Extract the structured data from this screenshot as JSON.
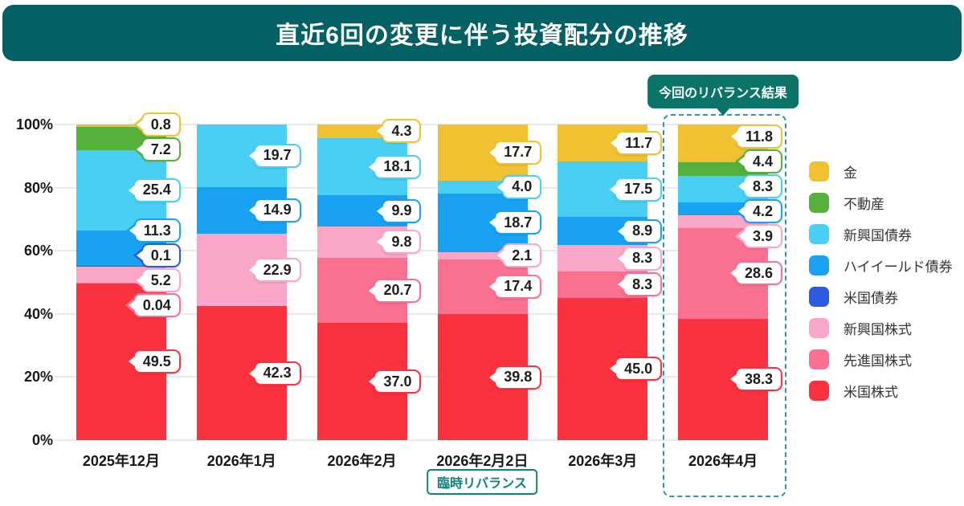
{
  "header": {
    "title": "直近6回の変更に伴う投資配分の推移"
  },
  "badges": {
    "current_result": "今回のリバランス結果",
    "temporary": "臨時リバランス"
  },
  "colors": {
    "header_bg": "#036064",
    "highlight_badge_bg": "#0A7468",
    "temporary_accent": "#11807B",
    "dashed_box": "#2F97A8",
    "grid": "#E9E9E9",
    "axis_text": "#16181B"
  },
  "chart_data": {
    "type": "bar",
    "subtype": "100%-stacked-column",
    "title": "直近6回の変更に伴う投資配分の推移",
    "categories": [
      "2025年12月",
      "2026年1月",
      "2026年2月",
      "2026年2月2日",
      "2026年3月",
      "2026年4月"
    ],
    "series": [
      {
        "name": "金",
        "color": "#F0C232",
        "values": [
          0.8,
          null,
          4.3,
          17.7,
          11.7,
          11.8
        ],
        "labels": [
          "0.8",
          null,
          "4.3",
          "17.7",
          "11.7",
          "11.8"
        ]
      },
      {
        "name": "不動産",
        "color": "#56B03C",
        "values": [
          7.2,
          null,
          null,
          null,
          null,
          4.4
        ],
        "labels": [
          "7.2",
          null,
          null,
          null,
          null,
          "4.4"
        ]
      },
      {
        "name": "新興国債券",
        "color": "#49CFF4",
        "values": [
          25.4,
          19.7,
          18.1,
          4.0,
          17.5,
          8.3
        ],
        "labels": [
          "25.4",
          "19.7",
          "18.1",
          "4.0",
          "17.5",
          "8.3"
        ]
      },
      {
        "name": "ハイイールド債券",
        "color": "#1AA2F2",
        "values": [
          11.3,
          14.9,
          9.9,
          18.7,
          8.9,
          4.2
        ],
        "labels": [
          "11.3",
          "14.9",
          "9.9",
          "18.7",
          "8.9",
          "4.2"
        ]
      },
      {
        "name": "米国債券",
        "color": "#2C5BE2",
        "values": [
          0.1,
          null,
          null,
          null,
          null,
          null
        ],
        "labels": [
          "0.1",
          null,
          null,
          null,
          null,
          null
        ]
      },
      {
        "name": "新興国株式",
        "color": "#FAA6C9",
        "values": [
          5.2,
          22.9,
          9.8,
          2.1,
          8.3,
          3.9
        ],
        "labels": [
          "5.2",
          "22.9",
          "9.8",
          "2.1",
          "8.3",
          "3.9"
        ]
      },
      {
        "name": "先進国株式",
        "color": "#FA7091",
        "values": [
          0.04,
          null,
          20.7,
          17.4,
          8.3,
          28.6
        ],
        "labels": [
          "0.04",
          null,
          "20.7",
          "17.4",
          "8.3",
          "28.6"
        ]
      },
      {
        "name": "米国株式",
        "color": "#FA323F",
        "values": [
          49.5,
          42.3,
          37.0,
          39.8,
          45.0,
          38.3
        ],
        "labels": [
          "49.5",
          "42.3",
          "37.0",
          "39.8",
          "45.0",
          "38.3"
        ]
      }
    ],
    "stack_order_note": "series listed top-of-stack first; bars normalized to 100%",
    "y_ticks": [
      "0%",
      "20%",
      "40%",
      "60%",
      "80%",
      "100%"
    ],
    "ylim": [
      0,
      100
    ],
    "grid": true,
    "legend_position": "right",
    "highlight": {
      "category_index": 5,
      "label": "今回のリバランス結果"
    },
    "temporary_rebalance": {
      "category_index": 3,
      "label": "臨時リバランス"
    }
  }
}
